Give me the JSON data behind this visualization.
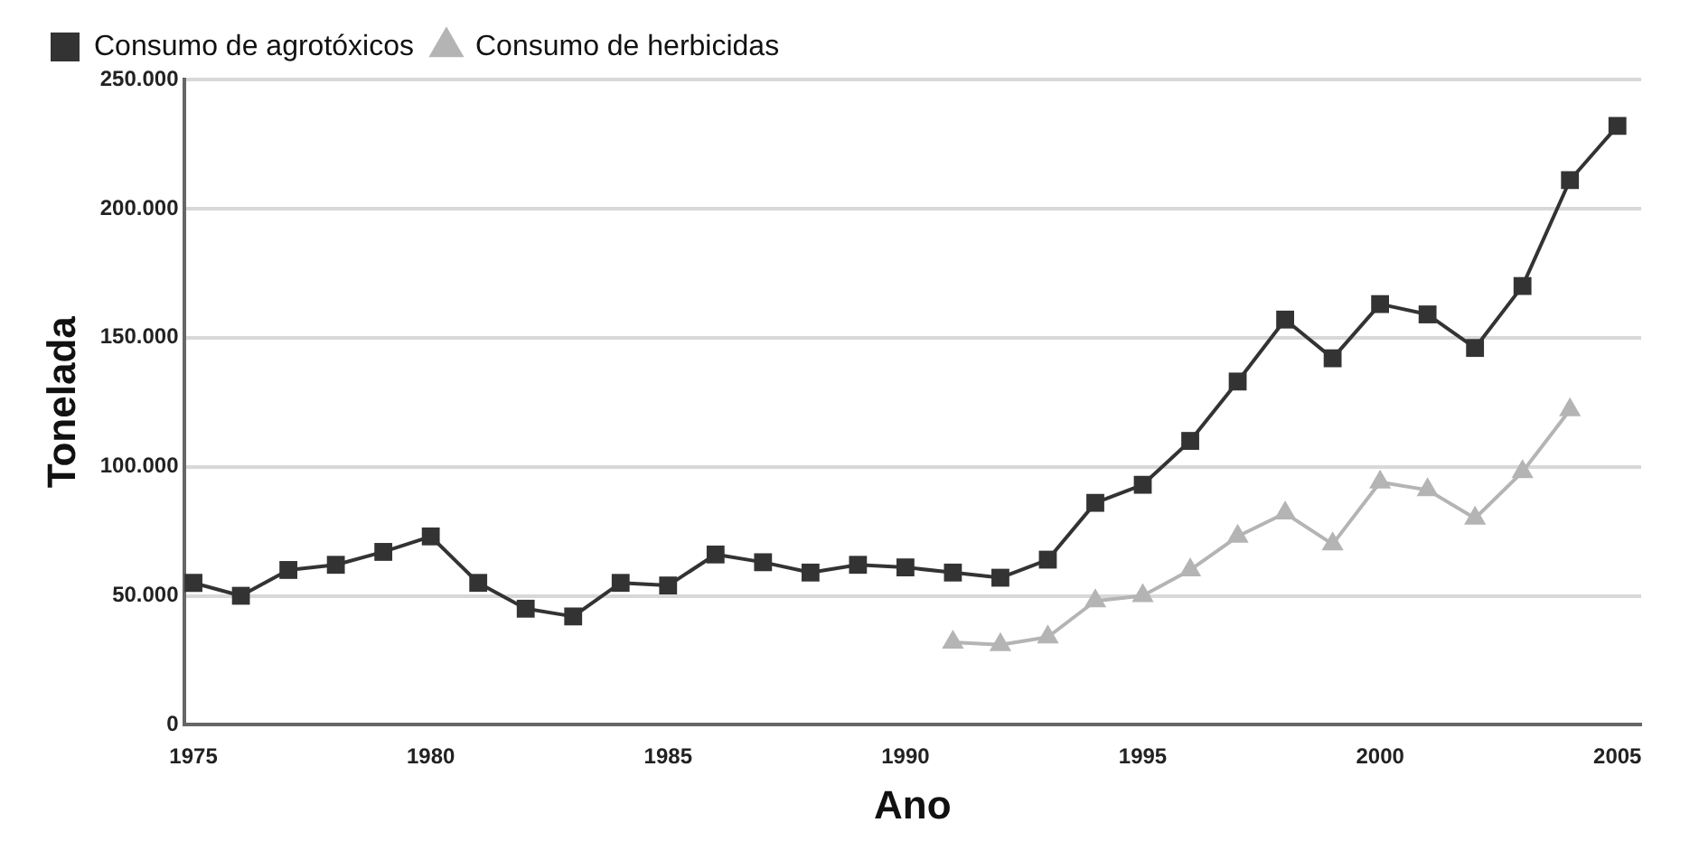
{
  "chart_data": {
    "type": "line",
    "xlabel": "Ano",
    "ylabel": "Tonelada",
    "x": [
      1975,
      1976,
      1977,
      1978,
      1979,
      1980,
      1981,
      1982,
      1983,
      1984,
      1985,
      1986,
      1987,
      1988,
      1989,
      1990,
      1991,
      1992,
      1993,
      1994,
      1995,
      1996,
      1997,
      1998,
      1999,
      2000,
      2001,
      2002,
      2003,
      2004,
      2005
    ],
    "series": [
      {
        "name": "Consumo de agrotóxicos",
        "color": "#333333",
        "marker": "square",
        "values": [
          55000,
          50000,
          60000,
          62000,
          67000,
          73000,
          55000,
          45000,
          42000,
          55000,
          54000,
          66000,
          63000,
          59000,
          62000,
          61000,
          59000,
          57000,
          64000,
          86000,
          93000,
          110000,
          133000,
          157000,
          142000,
          163000,
          159000,
          146000,
          170000,
          211000,
          232000
        ]
      },
      {
        "name": "Consumo de herbicidas",
        "color": "#b4b4b4",
        "marker": "triangle",
        "values": [
          null,
          null,
          null,
          null,
          null,
          null,
          null,
          null,
          null,
          null,
          null,
          null,
          null,
          null,
          null,
          null,
          32000,
          31000,
          34000,
          48000,
          50000,
          60000,
          73000,
          82000,
          70000,
          94000,
          91000,
          80000,
          98000,
          122000,
          null
        ]
      }
    ],
    "xlim": [
      1974.8,
      2005.5
    ],
    "xticks": [
      1975,
      1980,
      1985,
      1990,
      1995,
      2000,
      2005
    ],
    "ylim": [
      0,
      250000
    ],
    "yticks": [
      {
        "value": 0,
        "label": "0"
      },
      {
        "value": 50000,
        "label": "50.000"
      },
      {
        "value": 100000,
        "label": "100.000"
      },
      {
        "value": 150000,
        "label": "150.000"
      },
      {
        "value": 200000,
        "label": "200.000"
      },
      {
        "value": 250000,
        "label": "250.000"
      }
    ],
    "grid": "y",
    "legend": "top left"
  }
}
